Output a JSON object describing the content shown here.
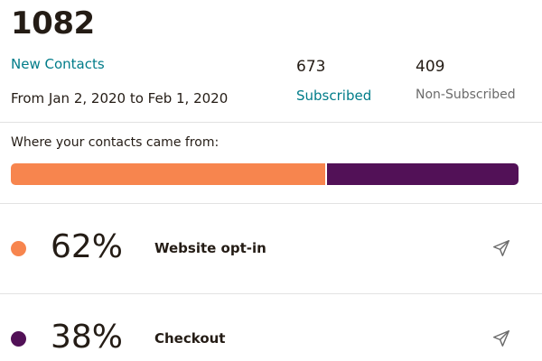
{
  "summary": {
    "total": "1082",
    "new_contacts_label": "New Contacts",
    "date_range": "From Jan 2, 2020 to Feb 1, 2020"
  },
  "stats": {
    "subscribed": {
      "value": "673",
      "label": "Subscribed"
    },
    "non_subscribed": {
      "value": "409",
      "label": "Non-Subscribed"
    }
  },
  "sources": {
    "heading": "Where your contacts came from:",
    "items": [
      {
        "percent_text": "62%",
        "percent": 62,
        "label": "Website opt-in",
        "color": "#f7854e",
        "icon": "send-icon"
      },
      {
        "percent_text": "38%",
        "percent": 38,
        "label": "Checkout",
        "color": "#521157",
        "icon": "send-icon"
      }
    ]
  },
  "colors": {
    "accent": "#007c89",
    "text": "#241c15",
    "muted": "#6b6b6b"
  }
}
